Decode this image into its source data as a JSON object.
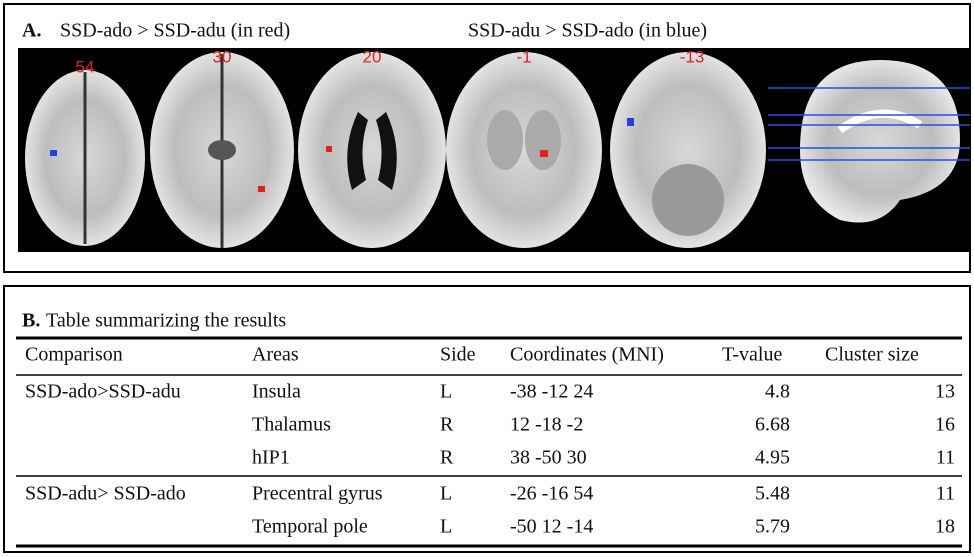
{
  "panel_a": {
    "label": "A.",
    "title_red": "SSD-ado > SSD-adu (in red)",
    "title_blue": "SSD-adu > SSD-ado (in blue)",
    "slices": [
      "54",
      "30",
      "20",
      "-1",
      "-13"
    ]
  },
  "panel_b": {
    "label": "B.",
    "title": "Table summarizing the results",
    "headers": [
      "Comparison",
      "Areas",
      "Side",
      "Coordinates (MNI)",
      "T-value",
      "Cluster size"
    ],
    "groups": [
      {
        "comparison": "SSD-ado>SSD-adu",
        "rows": [
          {
            "area": "Insula",
            "side": "L",
            "coordinates": "-38 -12 24",
            "t_value": "4.8",
            "cluster_size": "13"
          },
          {
            "area": "Thalamus",
            "side": "R",
            "coordinates": "12 -18 -2",
            "t_value": "6.68",
            "cluster_size": "16"
          },
          {
            "area": "hIP1",
            "side": "R",
            "coordinates": "38 -50 30",
            "t_value": "4.95",
            "cluster_size": "11"
          }
        ]
      },
      {
        "comparison": "SSD-adu> SSD-ado",
        "rows": [
          {
            "area": "Precentral gyrus",
            "side": "L",
            "coordinates": "-26 -16 54",
            "t_value": "5.48",
            "cluster_size": "11"
          },
          {
            "area": "Temporal pole",
            "side": "L",
            "coordinates": "-50 12 -14",
            "t_value": "5.79",
            "cluster_size": "18"
          }
        ]
      }
    ]
  }
}
